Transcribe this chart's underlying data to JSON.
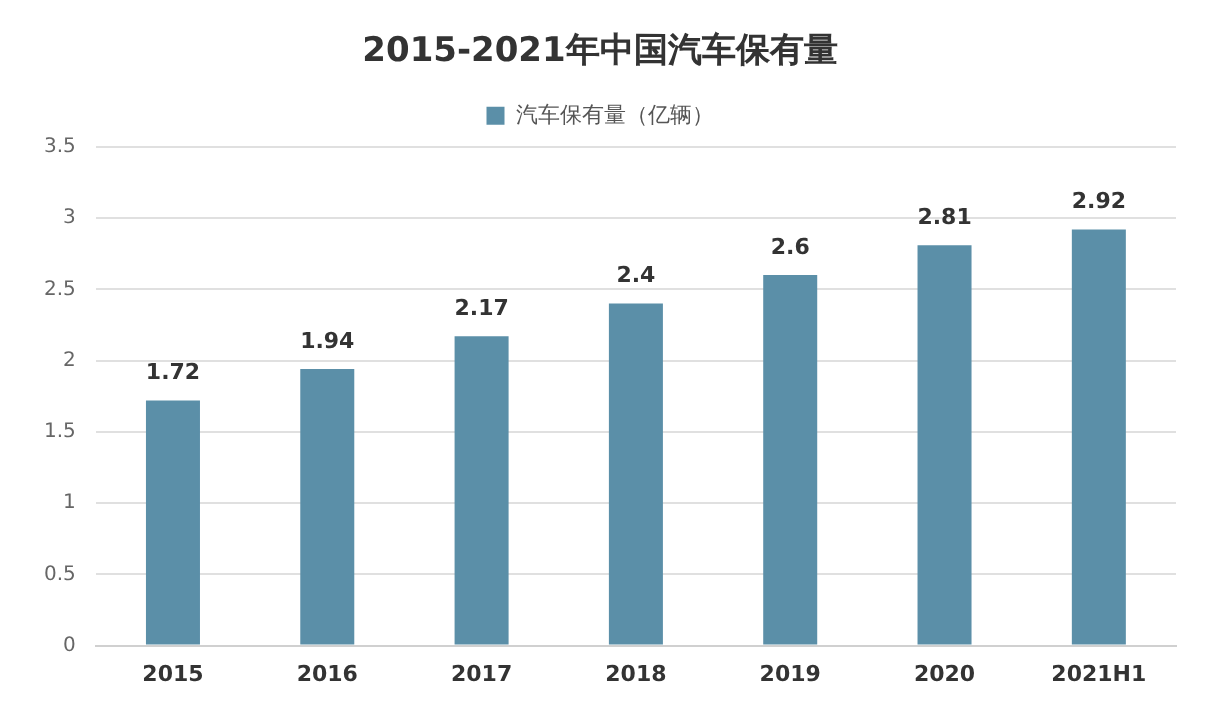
{
  "chart_data": {
    "type": "bar",
    "title": "2015-2021年中国汽车保有量",
    "categories": [
      "2015",
      "2016",
      "2017",
      "2018",
      "2019",
      "2020",
      "2021H1"
    ],
    "series": [
      {
        "name": "汽车保有量（亿辆）",
        "color": "#5b8fa8",
        "values": [
          1.72,
          1.94,
          2.17,
          2.4,
          2.6,
          2.81,
          2.92
        ]
      }
    ],
    "ylim": [
      0,
      3.5
    ],
    "yticks": [
      0,
      0.5,
      1,
      1.5,
      2,
      2.5,
      3,
      3.5
    ],
    "grid": "y",
    "legend": "top",
    "data_labels": true
  }
}
